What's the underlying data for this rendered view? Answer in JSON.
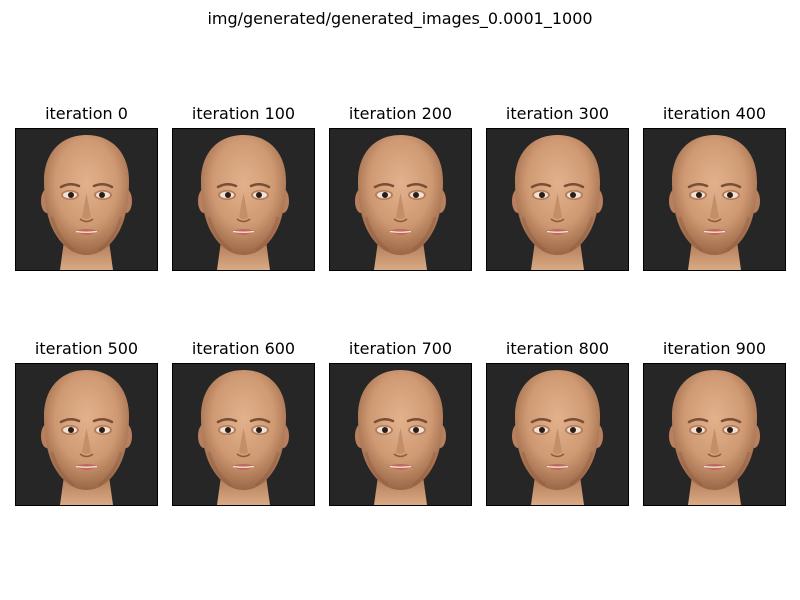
{
  "figure": {
    "suptitle": "img/generated/generated_images_0.0001_1000"
  },
  "panels": [
    {
      "title": "iteration 0",
      "image": "face-render"
    },
    {
      "title": "iteration 100",
      "image": "face-render"
    },
    {
      "title": "iteration 200",
      "image": "face-render"
    },
    {
      "title": "iteration 300",
      "image": "face-render"
    },
    {
      "title": "iteration 400",
      "image": "face-render"
    },
    {
      "title": "iteration 500",
      "image": "face-render"
    },
    {
      "title": "iteration 600",
      "image": "face-render"
    },
    {
      "title": "iteration 700",
      "image": "face-render"
    },
    {
      "title": "iteration 800",
      "image": "face-render"
    },
    {
      "title": "iteration 900",
      "image": "face-render"
    }
  ],
  "colors": {
    "background": "#262626",
    "skin": "#d7a47f",
    "skin_shadow": "#a87452",
    "lips": "#c06a5c",
    "eyes": "#2a1d16"
  }
}
